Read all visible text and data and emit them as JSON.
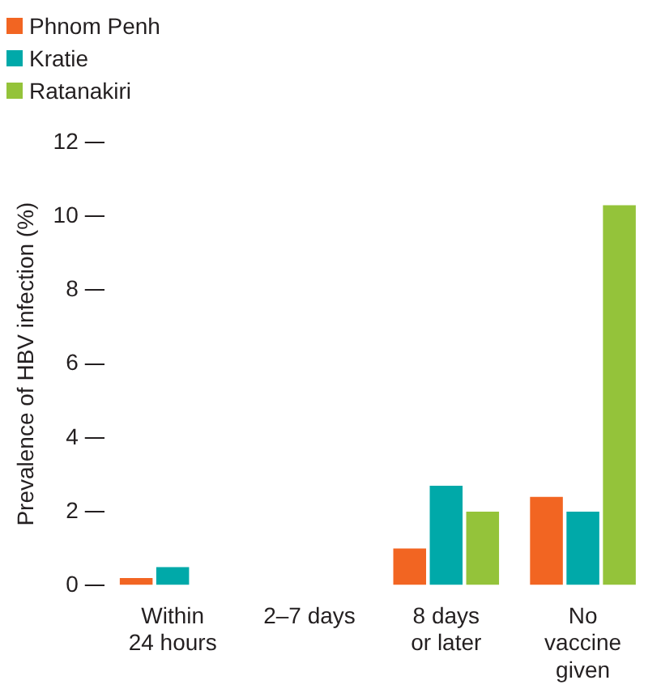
{
  "chart_data": {
    "type": "bar",
    "ylabel": "Prevalence of HBV infection (%)",
    "categories": [
      "Within 24 hours",
      "2–7 days",
      "8 days or later",
      "No vaccine given"
    ],
    "series": [
      {
        "name": "Phnom Penh",
        "color": "#f26522",
        "values": [
          0.2,
          0,
          1.0,
          2.4
        ]
      },
      {
        "name": "Kratie",
        "color": "#00a9a9",
        "values": [
          0.5,
          0,
          2.7,
          2.0
        ]
      },
      {
        "name": "Ratanakiri",
        "color": "#94c33a",
        "values": [
          0,
          0,
          2.0,
          10.3
        ]
      }
    ],
    "ylim": [
      0,
      12
    ],
    "yticks": [
      0,
      2,
      4,
      6,
      8,
      10,
      12
    ],
    "grid": false,
    "legend": "top left"
  }
}
